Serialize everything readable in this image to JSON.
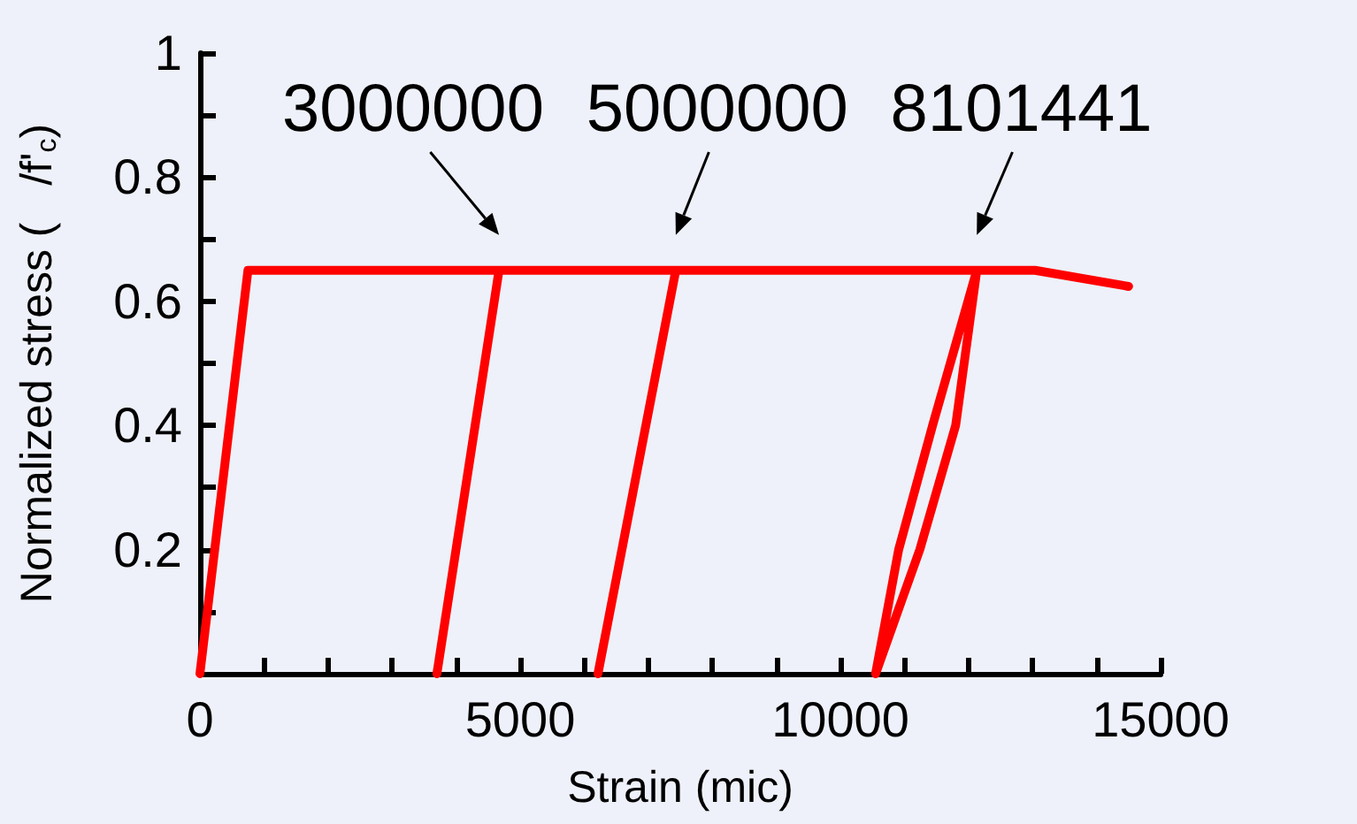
{
  "chart_data": {
    "type": "line",
    "xlabel": "Strain (mic)",
    "ylabel": "Normalized stress (   /f'$_{c}$)",
    "x": [
      0,
      750,
      4670,
      3700,
      4670,
      7430,
      6215,
      7430,
      12130,
      11440,
      10910,
      10550,
      11240,
      11800,
      12130,
      13040,
      14500
    ],
    "series": [
      {
        "color": "#ff0000",
        "values": [
          0,
          0.65,
          0.65,
          0,
          0.65,
          0.65,
          0,
          0.65,
          0.65,
          0.4,
          0.2,
          0,
          0.2,
          0.4,
          0.65,
          0.65,
          0.624
        ]
      }
    ],
    "xlim": [
      0,
      15000
    ],
    "ylim": [
      0,
      1
    ],
    "xticks": [
      0,
      {
        "value": 1000,
        "label": null
      },
      {
        "value": 2000,
        "label": null
      },
      {
        "value": 3000,
        "label": null
      },
      {
        "value": 4000,
        "label": null
      },
      5000,
      {
        "value": 6000,
        "label": null
      },
      {
        "value": 7000,
        "label": null
      },
      {
        "value": 8000,
        "label": null
      },
      {
        "value": 9000,
        "label": null
      },
      10000,
      {
        "value": 11000,
        "label": null
      },
      {
        "value": 12000,
        "label": null
      },
      {
        "value": 13000,
        "label": null
      },
      {
        "value": 14000,
        "label": null
      },
      15000
    ],
    "yticks": [
      {
        "value": 0,
        "label": null
      },
      {
        "value": 0.1,
        "label": null
      },
      0.2,
      {
        "value": 0.3,
        "label": null
      },
      0.4,
      {
        "value": 0.5,
        "label": null
      },
      0.6,
      {
        "value": 0.7,
        "label": null
      },
      0.8,
      {
        "value": 0.9,
        "label": null
      },
      1
    ],
    "annotations": [
      {
        "text": "3000000",
        "x": 4670,
        "y": 0.65
      },
      {
        "text": "5000000",
        "x": 7430,
        "y": 0.65
      },
      {
        "text": "8101441",
        "x": 12130,
        "y": 0.65
      }
    ],
    "grid": false,
    "marker": "none",
    "line_style": "solid"
  }
}
